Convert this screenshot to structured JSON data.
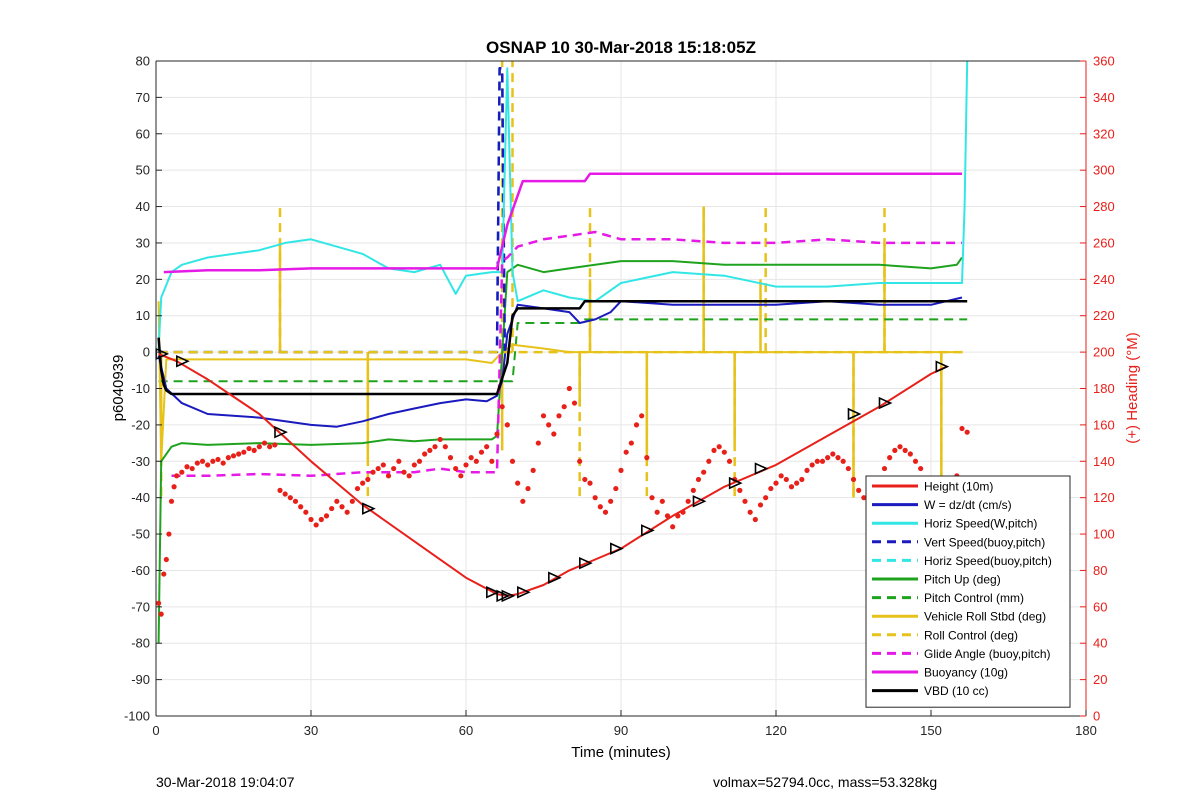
{
  "footer": {
    "timestamp": "30-Mar-2018 19:04:07",
    "summary": "volmax=52794.0cc, mass=53.328kg"
  },
  "chart_data": {
    "type": "line",
    "title": "OSNAP 10 30-Mar-2018 15:18:05Z",
    "xlabel": "Time (minutes)",
    "ylabel": "p6040939",
    "y2label": "(+) Heading (°M)",
    "xlim": [
      0,
      180
    ],
    "ylim": [
      -100,
      80
    ],
    "y2lim": [
      0,
      360
    ],
    "xticks": [
      0,
      30,
      60,
      90,
      120,
      150,
      180
    ],
    "yticks": [
      -100,
      -90,
      -80,
      -70,
      -60,
      -50,
      -40,
      -30,
      -20,
      -10,
      0,
      10,
      20,
      30,
      40,
      50,
      60,
      70,
      80
    ],
    "y2ticks": [
      0,
      20,
      40,
      60,
      80,
      100,
      120,
      140,
      160,
      180,
      200,
      220,
      240,
      260,
      280,
      300,
      320,
      340,
      360
    ],
    "grid": true,
    "legend_position": "bottom-right",
    "colors": {
      "red": "#e8201a",
      "blue": "#1a1abf",
      "cyan": "#33e6e6",
      "green": "#1fa31f",
      "yellow": "#e6c21a",
      "magenta": "#e61ae6",
      "black": "#000000",
      "right_axis": "#e8201a"
    },
    "series": [
      {
        "name": "Height (10m)",
        "color": "#e8201a",
        "style": "solid",
        "width": 2,
        "x": [
          0.5,
          4,
          10,
          20,
          30,
          40,
          50,
          60,
          66,
          68,
          70,
          75,
          80,
          85,
          90,
          100,
          110,
          120,
          130,
          140,
          150,
          153
        ],
        "y": [
          -0.5,
          -2.5,
          -7.5,
          -17,
          -30,
          -42,
          -52,
          -62,
          -66.5,
          -67,
          -66.5,
          -64,
          -60,
          -57,
          -54,
          -45,
          -37,
          -31,
          -23,
          -15,
          -6,
          -4
        ]
      },
      {
        "name": "W = dz/dt (cm/s)",
        "color": "#1a1abf",
        "style": "solid",
        "width": 2,
        "x": [
          0.5,
          2,
          5,
          10,
          20,
          30,
          35,
          40,
          45,
          50,
          55,
          60,
          64,
          66,
          67,
          68,
          70,
          75,
          80,
          82,
          85,
          88,
          90,
          100,
          110,
          120,
          130,
          140,
          150,
          156
        ],
        "y": [
          -1,
          -10,
          -14,
          -17,
          -18,
          -20,
          -20.5,
          -19,
          -17,
          -15.5,
          -14,
          -13,
          -13.5,
          -12,
          -8,
          5,
          13,
          12,
          11,
          8,
          9,
          11,
          14,
          13,
          13,
          13,
          14,
          13,
          13,
          15
        ]
      },
      {
        "name": "Horiz Speed(W,pitch)",
        "color": "#33e6e6",
        "style": "solid",
        "width": 2,
        "x": [
          0.5,
          1,
          3,
          5,
          10,
          20,
          25,
          30,
          40,
          45,
          50,
          55,
          58,
          60,
          65,
          67,
          68,
          69,
          70,
          75,
          80,
          85,
          90,
          100,
          110,
          120,
          130,
          140,
          150,
          156,
          156.5,
          157
        ],
        "y": [
          1,
          15,
          22,
          24,
          26,
          28,
          30,
          31,
          27,
          23,
          22,
          24,
          16,
          21,
          22,
          22,
          78,
          22,
          14,
          17,
          15,
          14,
          19,
          22,
          21,
          18,
          18,
          19,
          19,
          19,
          40,
          80
        ]
      },
      {
        "name": "Vert Speed(buoy,pitch)",
        "color": "#1a1abf",
        "style": "dash",
        "width": 2.5,
        "x": [
          0.5,
          66,
          66.5,
          67,
          67.5,
          68
        ],
        "y": [
          0,
          0,
          78,
          78,
          0,
          0
        ]
      },
      {
        "name": "Horiz Speed(buoy,pitch)",
        "color": "#33e6e6",
        "style": "dash",
        "width": 2.5,
        "x": [
          0.5,
          66,
          66.5,
          67,
          67.5,
          68
        ],
        "y": [
          0,
          0,
          78,
          78,
          0,
          0
        ]
      },
      {
        "name": "Pitch Up (deg)",
        "color": "#1fa31f",
        "style": "solid",
        "width": 2,
        "x": [
          0.5,
          1,
          3,
          5,
          10,
          20,
          30,
          40,
          45,
          50,
          55,
          60,
          65,
          66,
          68,
          70,
          75,
          80,
          90,
          100,
          110,
          120,
          130,
          140,
          150,
          155,
          156
        ],
        "y": [
          -80,
          -30,
          -26,
          -25,
          -25.5,
          -25,
          -25.5,
          -25,
          -24,
          -24.5,
          -24,
          -24,
          -24,
          -23,
          22,
          24,
          22,
          23,
          25,
          25,
          24,
          24,
          24,
          24,
          23,
          24,
          26
        ]
      },
      {
        "name": "Pitch Control (mm)",
        "color": "#1fa31f",
        "style": "dash",
        "width": 2,
        "x": [
          0.5,
          66,
          69,
          70,
          82,
          83,
          157
        ],
        "y": [
          -8,
          -8,
          -8,
          8,
          8,
          9,
          9
        ]
      },
      {
        "name": "Vehicle Roll Stbd (deg)",
        "color": "#e6c21a",
        "style": "solid",
        "width": 2,
        "x": [
          0.5,
          1,
          2,
          4,
          10,
          20,
          30,
          40,
          50,
          60,
          65,
          67,
          69,
          75,
          80,
          85,
          90,
          100,
          110,
          120,
          130,
          140,
          150,
          156
        ],
        "y": [
          14,
          -30,
          -2,
          -2,
          -2,
          -2,
          -2,
          -2,
          -2,
          -2,
          -3,
          0,
          2,
          1,
          0,
          0,
          0,
          0,
          0,
          0,
          0,
          0,
          0,
          0
        ]
      },
      {
        "name": "Roll Control (deg)",
        "color": "#e6c21a",
        "style": "dash",
        "width": 2.5,
        "x": [
          0.5,
          157
        ],
        "y": [
          0,
          0
        ]
      },
      {
        "name": "Glide Angle (buoy,pitch)",
        "color": "#e61ae6",
        "style": "dash",
        "width": 2.5,
        "x": [
          3,
          10,
          20,
          30,
          40,
          50,
          55,
          60,
          65,
          66,
          67,
          68,
          70,
          75,
          80,
          85,
          90,
          100,
          110,
          120,
          130,
          140,
          150,
          156
        ],
        "y": [
          -34,
          -34,
          -33.5,
          -34,
          -33,
          -33,
          -32,
          -33,
          -33,
          -33,
          25,
          26,
          29,
          31,
          32,
          33,
          31,
          31,
          30,
          30,
          31,
          30,
          30,
          30
        ]
      },
      {
        "name": "Buoyancy (10g)",
        "color": "#e61ae6",
        "style": "solid",
        "width": 2.5,
        "x": [
          1.5,
          10,
          20,
          30,
          40,
          50,
          60,
          66,
          68,
          71,
          77,
          83,
          84,
          100,
          120,
          140,
          156
        ],
        "y": [
          22,
          22.5,
          22.5,
          23,
          23,
          23,
          23,
          23,
          35,
          47,
          47,
          47,
          49,
          49,
          49,
          49,
          49
        ]
      },
      {
        "name": "VBD (10 cc)",
        "color": "#000000",
        "style": "solid",
        "width": 2.5,
        "x": [
          0.5,
          1,
          1.5,
          2,
          3,
          66,
          68,
          69,
          70,
          82,
          83,
          90,
          100,
          157
        ],
        "y": [
          4,
          -5,
          -9,
          -10.5,
          -11.5,
          -11.5,
          -3,
          10,
          12,
          12,
          14,
          14,
          14,
          14
        ]
      }
    ],
    "roll_spikes": {
      "note": "Vehicle Roll Stbd spikes (minutes, value)",
      "x": [
        1,
        24,
        41,
        67,
        82,
        84,
        95,
        106,
        112,
        117,
        135,
        141,
        152
      ],
      "y": [
        -30,
        30,
        -30,
        -27,
        -15,
        20,
        -30,
        40,
        -25,
        20,
        -40,
        30,
        -40
      ]
    },
    "roll_control_spikes": {
      "x": [
        1,
        24,
        41,
        67,
        69,
        82,
        84,
        95,
        106,
        112,
        118,
        135,
        141,
        152
      ],
      "y": [
        -40,
        40,
        -40,
        80,
        80,
        -40,
        40,
        -40,
        40,
        -40,
        40,
        -40,
        40,
        -40
      ]
    },
    "heading_points": {
      "name": "Heading (°M)",
      "axis": "right",
      "color": "#e8201a",
      "x": [
        0.5,
        1,
        1.5,
        2,
        2.5,
        3,
        3.5,
        4,
        5,
        6,
        7,
        8,
        9,
        10,
        11,
        12,
        13,
        14,
        15,
        16,
        17,
        18,
        19,
        20,
        21,
        22,
        23,
        24,
        25,
        26,
        27,
        28,
        29,
        30,
        31,
        32,
        33,
        34,
        35,
        36,
        37,
        38,
        39,
        40,
        41,
        42,
        43,
        44,
        45,
        46,
        47,
        48,
        49,
        50,
        51,
        52,
        53,
        54,
        55,
        56,
        57,
        58,
        59,
        60,
        61,
        62,
        63,
        64,
        65,
        66,
        67,
        68,
        69,
        70,
        71,
        72,
        73,
        74,
        75,
        76,
        77,
        78,
        79,
        80,
        81,
        82,
        83,
        84,
        85,
        86,
        87,
        88,
        89,
        90,
        91,
        92,
        93,
        94,
        95,
        96,
        97,
        98,
        99,
        100,
        101,
        102,
        103,
        104,
        105,
        106,
        107,
        108,
        109,
        110,
        111,
        112,
        113,
        114,
        115,
        116,
        117,
        118,
        119,
        120,
        121,
        122,
        123,
        124,
        125,
        126,
        127,
        128,
        129,
        130,
        131,
        132,
        133,
        134,
        135,
        136,
        137,
        138,
        139,
        140,
        141,
        142,
        143,
        144,
        145,
        146,
        147,
        148,
        149,
        150,
        151,
        152,
        153,
        154,
        155,
        156,
        157
      ],
      "y": [
        62,
        56,
        78,
        86,
        100,
        118,
        126,
        132,
        134,
        137,
        136,
        139,
        140,
        138,
        140,
        141,
        139,
        142,
        143,
        144,
        145,
        147,
        146,
        148,
        150,
        148,
        149,
        124,
        122,
        120,
        118,
        115,
        112,
        108,
        105,
        108,
        110,
        114,
        118,
        115,
        112,
        118,
        125,
        128,
        130,
        134,
        136,
        138,
        132,
        136,
        140,
        134,
        132,
        138,
        140,
        144,
        146,
        148,
        152,
        148,
        142,
        136,
        132,
        138,
        142,
        140,
        145,
        148,
        140,
        155,
        170,
        160,
        140,
        128,
        118,
        125,
        135,
        150,
        165,
        160,
        155,
        165,
        170,
        180,
        172,
        140,
        130,
        128,
        120,
        115,
        112,
        118,
        125,
        135,
        145,
        150,
        160,
        165,
        142,
        120,
        112,
        118,
        110,
        104,
        110,
        112,
        118,
        124,
        130,
        134,
        140,
        146,
        148,
        145,
        140,
        130,
        124,
        118,
        112,
        108,
        116,
        120,
        125,
        128,
        132,
        130,
        126,
        128,
        130,
        135,
        138,
        140,
        140,
        142,
        144,
        142,
        140,
        136,
        130,
        124,
        120,
        118,
        124,
        130,
        136,
        142,
        146,
        148,
        146,
        144,
        140,
        136,
        128,
        120,
        116,
        120,
        125,
        128,
        132,
        158,
        156
      ]
    },
    "markers": {
      "note": "black diamond / triangle markers along Height trace (minutes, value)",
      "x": [
        1,
        5,
        24,
        41,
        65,
        67,
        68,
        71,
        77,
        83,
        89,
        95,
        105,
        112,
        117,
        135,
        141,
        152
      ],
      "y": [
        -0.5,
        -2.5,
        -22,
        -43,
        -66,
        -67,
        -67,
        -66,
        -62,
        -58,
        -54,
        -49,
        -41,
        -36,
        -32,
        -17,
        -14,
        -4
      ]
    }
  }
}
